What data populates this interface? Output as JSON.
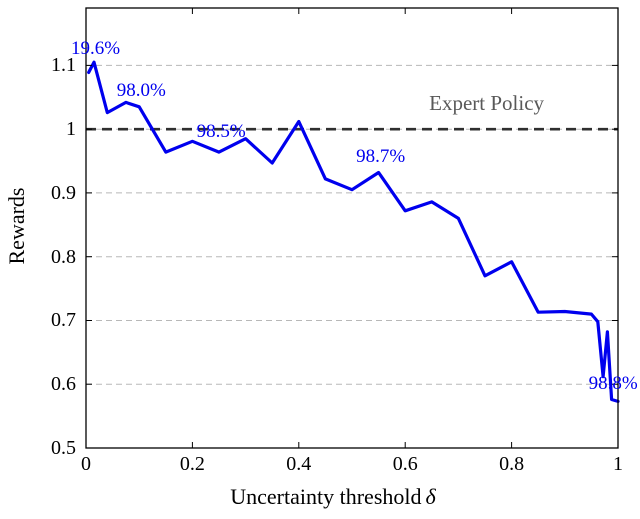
{
  "chart_data": {
    "type": "line",
    "title": "",
    "xlabel_text": "Uncertainty threshold",
    "xlabel_symbol": "δ",
    "ylabel": "Rewards",
    "xlim": [
      0,
      1
    ],
    "ylim": [
      0.5,
      1.19
    ],
    "grid": "horizontal-dashed",
    "legend": "none",
    "x_ticks": {
      "values": [
        0,
        0.2,
        0.4,
        0.6,
        0.8,
        1
      ],
      "labels": [
        "0",
        "0.2",
        "0.4",
        "0.6",
        "0.8",
        "1"
      ]
    },
    "y_ticks": {
      "values": [
        0.5,
        0.6,
        0.7,
        0.8,
        0.9,
        1,
        1.1
      ],
      "labels": [
        "0.5",
        "0.6",
        "0.7",
        "0.8",
        "0.9",
        "1",
        "1.1"
      ]
    },
    "series": [
      {
        "name": "rewards-vs-threshold",
        "color": "#0000ee",
        "points": [
          [
            0.005,
            1.089
          ],
          [
            0.015,
            1.105
          ],
          [
            0.04,
            1.026
          ],
          [
            0.075,
            1.042
          ],
          [
            0.1,
            1.035
          ],
          [
            0.15,
            0.964
          ],
          [
            0.2,
            0.981
          ],
          [
            0.25,
            0.964
          ],
          [
            0.3,
            0.985
          ],
          [
            0.35,
            0.947
          ],
          [
            0.4,
            1.012
          ],
          [
            0.45,
            0.922
          ],
          [
            0.5,
            0.905
          ],
          [
            0.55,
            0.932
          ],
          [
            0.6,
            0.872
          ],
          [
            0.65,
            0.886
          ],
          [
            0.7,
            0.86
          ],
          [
            0.75,
            0.77
          ],
          [
            0.8,
            0.792
          ],
          [
            0.85,
            0.713
          ],
          [
            0.9,
            0.714
          ],
          [
            0.95,
            0.71
          ],
          [
            0.962,
            0.698
          ],
          [
            0.972,
            0.612
          ],
          [
            0.98,
            0.682
          ],
          [
            0.988,
            0.576
          ],
          [
            1.0,
            0.573
          ]
        ]
      }
    ],
    "reference_line": {
      "value": 1.0,
      "label": "Expert Policy",
      "line_color": "#2f2f2f",
      "label_color": "#595959",
      "label_x": 0.753,
      "label_y": 1.041
    },
    "annotations": [
      {
        "text": "19.6%",
        "x": 0.018,
        "y": 1.125
      },
      {
        "text": "98.0%",
        "x": 0.104,
        "y": 1.06
      },
      {
        "text": "98.5%",
        "x": 0.254,
        "y": 0.995
      },
      {
        "text": "98.7%",
        "x": 0.554,
        "y": 0.956
      },
      {
        "text": "98.8%",
        "x": 0.991,
        "y": 0.601
      }
    ],
    "annotation_color": "#0000ee",
    "grid_color": "#b8b8b8",
    "axis_color": "#000000"
  }
}
